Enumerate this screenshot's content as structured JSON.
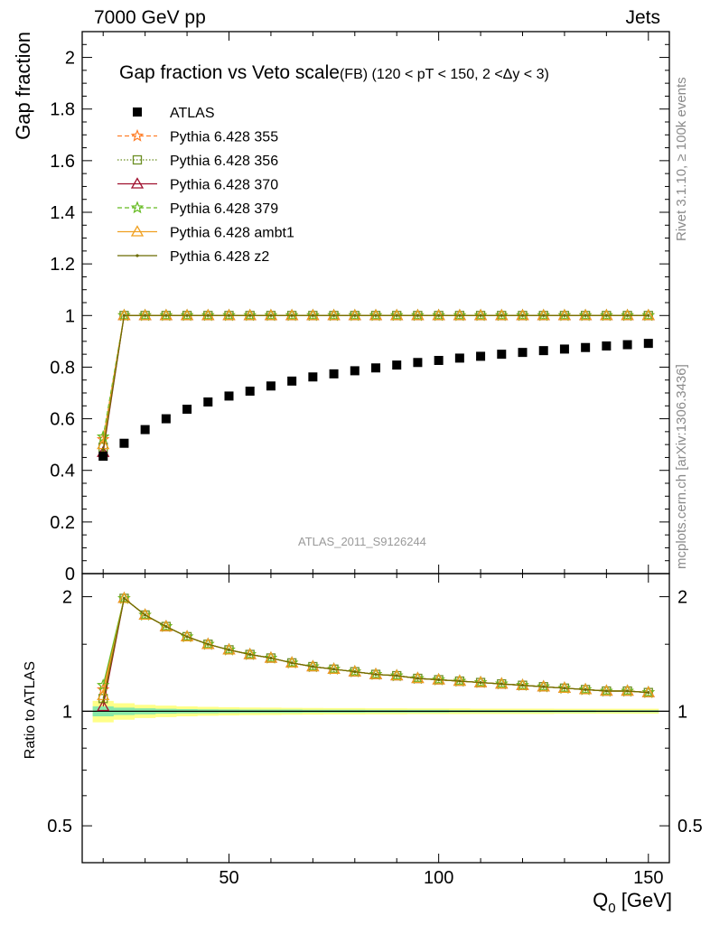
{
  "header": {
    "left": "7000 GeV pp",
    "right": "Jets"
  },
  "side_labels": {
    "rivet": "Rivet 3.1.10, ≥ 100k events",
    "mcplots": "mcplots.cern.ch [arXiv:1306.3436]"
  },
  "chart_data": [
    {
      "type": "scatter",
      "title": "Gap fraction vs Veto scale",
      "subtitle": "(FB) (120 < pT < 150, 2 <Δy < 3)",
      "ylabel": "Gap fraction",
      "xlabel": "Q0 [GeV]",
      "xlim": [
        15,
        155
      ],
      "ylim": [
        0,
        2.1
      ],
      "yticks": [
        0,
        0.2,
        0.4,
        0.6,
        0.8,
        1,
        1.2,
        1.4,
        1.6,
        1.8,
        2
      ],
      "ytick_labels": [
        "0",
        "0.2",
        "0.4",
        "0.6",
        "0.8",
        "1",
        "1.2",
        "1.4",
        "1.6",
        "1.8",
        "2"
      ],
      "watermark": "ATLAS_2011_S9126244",
      "legend_position": "top-left",
      "x": [
        20,
        25,
        30,
        35,
        40,
        45,
        50,
        55,
        60,
        65,
        70,
        75,
        80,
        85,
        90,
        95,
        100,
        105,
        110,
        115,
        120,
        125,
        130,
        135,
        140,
        145,
        150
      ],
      "series": [
        {
          "name": "ATLAS",
          "color": "#000000",
          "marker": "square",
          "values": [
            0.455,
            0.505,
            0.558,
            0.6,
            0.637,
            0.665,
            0.688,
            0.707,
            0.727,
            0.746,
            0.762,
            0.774,
            0.786,
            0.797,
            0.808,
            0.818,
            0.826,
            0.835,
            0.842,
            0.85,
            0.857,
            0.864,
            0.87,
            0.876,
            0.882,
            0.887,
            0.892
          ]
        },
        {
          "name": "Pythia 6.428 355",
          "color": "#ff7f2a",
          "marker": "star",
          "line": "dashed",
          "values": [
            0.52,
            1,
            1,
            1,
            1,
            1,
            1,
            1,
            1,
            1,
            1,
            1,
            1,
            1,
            1,
            1,
            1,
            1,
            1,
            1,
            1,
            1,
            1,
            1,
            1,
            1,
            1
          ]
        },
        {
          "name": "Pythia 6.428 356",
          "color": "#6b8e23",
          "marker": "square-open",
          "line": "dotted",
          "values": [
            0.49,
            1,
            1,
            1,
            1,
            1,
            1,
            1,
            1,
            1,
            1,
            1,
            1,
            1,
            1,
            1,
            1,
            1,
            1,
            1,
            1,
            1,
            1,
            1,
            1,
            1,
            1
          ]
        },
        {
          "name": "Pythia 6.428 370",
          "color": "#a0102e",
          "marker": "triangle-open",
          "line": "solid",
          "values": [
            0.47,
            1,
            1,
            1,
            1,
            1,
            1,
            1,
            1,
            1,
            1,
            1,
            1,
            1,
            1,
            1,
            1,
            1,
            1,
            1,
            1,
            1,
            1,
            1,
            1,
            1,
            1
          ]
        },
        {
          "name": "Pythia 6.428 379",
          "color": "#66bb22",
          "marker": "star",
          "line": "dashed",
          "values": [
            0.53,
            1,
            1,
            1,
            1,
            1,
            1,
            1,
            1,
            1,
            1,
            1,
            1,
            1,
            1,
            1,
            1,
            1,
            1,
            1,
            1,
            1,
            1,
            1,
            1,
            1,
            1
          ]
        },
        {
          "name": "Pythia 6.428 ambt1",
          "color": "#f0a020",
          "marker": "triangle-open",
          "line": "solid",
          "values": [
            0.5,
            1,
            1,
            1,
            1,
            1,
            1,
            1,
            1,
            1,
            1,
            1,
            1,
            1,
            1,
            1,
            1,
            1,
            1,
            1,
            1,
            1,
            1,
            1,
            1,
            1,
            1
          ]
        },
        {
          "name": "Pythia 6.428 z2",
          "color": "#6b6b00",
          "marker": "dot",
          "line": "solid",
          "values": [
            0.48,
            1,
            1,
            1,
            1,
            1,
            1,
            1,
            1,
            1,
            1,
            1,
            1,
            1,
            1,
            1,
            1,
            1,
            1,
            1,
            1,
            1,
            1,
            1,
            1,
            1,
            1
          ]
        }
      ]
    },
    {
      "type": "line",
      "ylabel": "Ratio to ATLAS",
      "xlabel": "Q0 [GeV]",
      "xlim": [
        15,
        155
      ],
      "ylim": [
        0.4,
        2.3
      ],
      "log_y": true,
      "yticks": [
        0.5,
        1,
        2
      ],
      "ytick_labels": [
        "0.5",
        "1",
        "2"
      ],
      "xticks": [
        50,
        100,
        150
      ],
      "xtick_labels": [
        "50",
        "100",
        "150"
      ],
      "x": [
        20,
        25,
        30,
        35,
        40,
        45,
        50,
        55,
        60,
        65,
        70,
        75,
        80,
        85,
        90,
        95,
        100,
        105,
        110,
        115,
        120,
        125,
        130,
        135,
        140,
        145,
        150
      ],
      "band_inner": [
        0.97,
        0.978,
        0.982,
        0.985,
        0.987,
        0.988,
        0.989,
        0.99,
        0.99,
        0.99,
        0.991,
        0.991,
        0.991,
        0.992,
        0.992,
        0.992,
        0.992,
        0.993,
        0.993,
        0.993,
        0.993,
        0.993,
        0.993,
        0.993,
        0.994,
        0.994,
        0.994
      ],
      "band_outer": [
        0.935,
        0.95,
        0.96,
        0.965,
        0.97,
        0.973,
        0.975,
        0.977,
        0.978,
        0.979,
        0.98,
        0.981,
        0.981,
        0.982,
        0.982,
        0.983,
        0.983,
        0.983,
        0.984,
        0.984,
        0.984,
        0.984,
        0.985,
        0.985,
        0.985,
        0.985,
        0.985
      ],
      "series": [
        {
          "name": "Pythia 6.428 355",
          "color": "#ff7f2a",
          "marker": "star",
          "values": [
            1.14,
            1.98,
            1.79,
            1.67,
            1.57,
            1.5,
            1.45,
            1.41,
            1.38,
            1.34,
            1.31,
            1.29,
            1.27,
            1.25,
            1.24,
            1.22,
            1.21,
            1.2,
            1.19,
            1.18,
            1.17,
            1.16,
            1.15,
            1.14,
            1.13,
            1.13,
            1.12
          ]
        },
        {
          "name": "Pythia 6.428 356",
          "color": "#6b8e23",
          "marker": "square-open",
          "values": [
            1.08,
            1.98,
            1.79,
            1.67,
            1.57,
            1.5,
            1.45,
            1.41,
            1.38,
            1.34,
            1.31,
            1.29,
            1.27,
            1.25,
            1.24,
            1.22,
            1.21,
            1.2,
            1.19,
            1.18,
            1.17,
            1.16,
            1.15,
            1.14,
            1.13,
            1.13,
            1.12
          ]
        },
        {
          "name": "Pythia 6.428 370",
          "color": "#a0102e",
          "marker": "triangle-open",
          "values": [
            1.03,
            1.98,
            1.79,
            1.67,
            1.57,
            1.5,
            1.45,
            1.41,
            1.38,
            1.34,
            1.31,
            1.29,
            1.27,
            1.25,
            1.24,
            1.22,
            1.21,
            1.2,
            1.19,
            1.18,
            1.17,
            1.16,
            1.15,
            1.14,
            1.13,
            1.13,
            1.12
          ]
        },
        {
          "name": "Pythia 6.428 379",
          "color": "#66bb22",
          "marker": "star",
          "values": [
            1.17,
            1.98,
            1.79,
            1.67,
            1.57,
            1.5,
            1.45,
            1.41,
            1.38,
            1.34,
            1.31,
            1.29,
            1.27,
            1.25,
            1.24,
            1.22,
            1.21,
            1.2,
            1.19,
            1.18,
            1.17,
            1.16,
            1.15,
            1.14,
            1.13,
            1.13,
            1.12
          ]
        },
        {
          "name": "Pythia 6.428 ambt1",
          "color": "#f0a020",
          "marker": "triangle-open",
          "values": [
            1.1,
            1.98,
            1.79,
            1.67,
            1.57,
            1.5,
            1.45,
            1.41,
            1.38,
            1.34,
            1.31,
            1.29,
            1.27,
            1.25,
            1.24,
            1.22,
            1.21,
            1.2,
            1.19,
            1.18,
            1.17,
            1.16,
            1.15,
            1.14,
            1.13,
            1.13,
            1.12
          ]
        },
        {
          "name": "Pythia 6.428 z2",
          "color": "#6b6b00",
          "marker": "dot",
          "values": [
            1.06,
            1.98,
            1.79,
            1.67,
            1.57,
            1.5,
            1.45,
            1.41,
            1.38,
            1.34,
            1.31,
            1.29,
            1.27,
            1.25,
            1.24,
            1.22,
            1.21,
            1.2,
            1.19,
            1.18,
            1.17,
            1.16,
            1.15,
            1.14,
            1.13,
            1.13,
            1.12
          ]
        }
      ]
    }
  ]
}
